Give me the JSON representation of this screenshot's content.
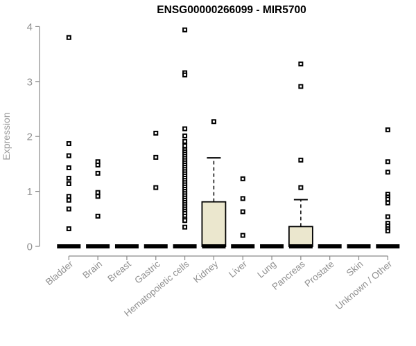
{
  "title": "ENSG00000266099 - MIR5700",
  "colors": {
    "axis": "#8a8a8a",
    "tick_label": "#8f8f8f",
    "axis_title": "#9a9a9a",
    "plot_title": "#000000",
    "data": "#000000",
    "box_fill": "#ebe7ce",
    "background": "#ffffff"
  },
  "chart_data": {
    "type": "boxplot",
    "title": "ENSG00000266099 - MIR5700",
    "xlabel": "",
    "ylabel": "Expression",
    "ylim": [
      0,
      4
    ],
    "yticks": [
      0,
      1,
      2,
      3,
      4
    ],
    "grid": false,
    "legend": "none",
    "categories": [
      "Bladder",
      "Brain",
      "Breast",
      "Gastric",
      "Hematopoietic cells",
      "Kidney",
      "Liver",
      "Lung",
      "Pancreas",
      "Prostate",
      "Skin",
      "Unknown / Other"
    ],
    "series": [
      {
        "category": "Bladder",
        "q1": 0,
        "median": 0,
        "q3": 0,
        "whisker_low": 0,
        "whisker_high": 0,
        "outliers": [
          3.8,
          1.87,
          1.65,
          1.43,
          1.24,
          1.14,
          0.91,
          0.84,
          0.68,
          0.32
        ]
      },
      {
        "category": "Brain",
        "q1": 0,
        "median": 0,
        "q3": 0,
        "whisker_low": 0,
        "whisker_high": 0,
        "outliers": [
          1.54,
          1.48,
          1.33,
          0.98,
          0.91,
          0.55
        ]
      },
      {
        "category": "Breast",
        "q1": 0,
        "median": 0,
        "q3": 0,
        "whisker_low": 0,
        "whisker_high": 0,
        "outliers": []
      },
      {
        "category": "Gastric",
        "q1": 0,
        "median": 0,
        "q3": 0,
        "whisker_low": 0,
        "whisker_high": 0,
        "outliers": [
          2.06,
          1.62,
          1.07
        ]
      },
      {
        "category": "Hematopoietic cells",
        "q1": 0,
        "median": 0,
        "q3": 0,
        "whisker_low": 0,
        "whisker_high": 0,
        "outliers": [
          3.94,
          3.16,
          3.12,
          2.14,
          2.01,
          1.91,
          1.83,
          1.76,
          1.72,
          1.68,
          1.64,
          1.6,
          1.56,
          1.52,
          1.48,
          1.44,
          1.4,
          1.36,
          1.32,
          1.28,
          1.24,
          1.2,
          1.16,
          1.12,
          1.08,
          1.04,
          1.0,
          0.96,
          0.92,
          0.88,
          0.84,
          0.8,
          0.76,
          0.72,
          0.68,
          0.64,
          0.6,
          0.55,
          0.5,
          0.47,
          0.35
        ]
      },
      {
        "category": "Kidney",
        "q1": 0,
        "median": 0,
        "q3": 0.81,
        "whisker_low": 0,
        "whisker_high": 1.61,
        "outliers": [
          2.27
        ]
      },
      {
        "category": "Liver",
        "q1": 0,
        "median": 0,
        "q3": 0,
        "whisker_low": 0,
        "whisker_high": 0,
        "outliers": [
          1.23,
          0.87,
          0.63,
          0.2
        ]
      },
      {
        "category": "Lung",
        "q1": 0,
        "median": 0,
        "q3": 0,
        "whisker_low": 0,
        "whisker_high": 0,
        "outliers": []
      },
      {
        "category": "Pancreas",
        "q1": 0,
        "median": 0,
        "q3": 0.36,
        "whisker_low": 0,
        "whisker_high": 0.85,
        "outliers": [
          3.32,
          2.91,
          1.57,
          1.07
        ]
      },
      {
        "category": "Prostate",
        "q1": 0,
        "median": 0,
        "q3": 0,
        "whisker_low": 0,
        "whisker_high": 0,
        "outliers": []
      },
      {
        "category": "Skin",
        "q1": 0,
        "median": 0,
        "q3": 0,
        "whisker_low": 0,
        "whisker_high": 0,
        "outliers": []
      },
      {
        "category": "Unknown / Other",
        "q1": 0,
        "median": 0,
        "q3": 0,
        "whisker_low": 0,
        "whisker_high": 0,
        "outliers": [
          2.12,
          1.54,
          1.35,
          0.95,
          0.9,
          0.86,
          0.79,
          0.54,
          0.42,
          0.37,
          0.32,
          0.28
        ]
      }
    ]
  }
}
